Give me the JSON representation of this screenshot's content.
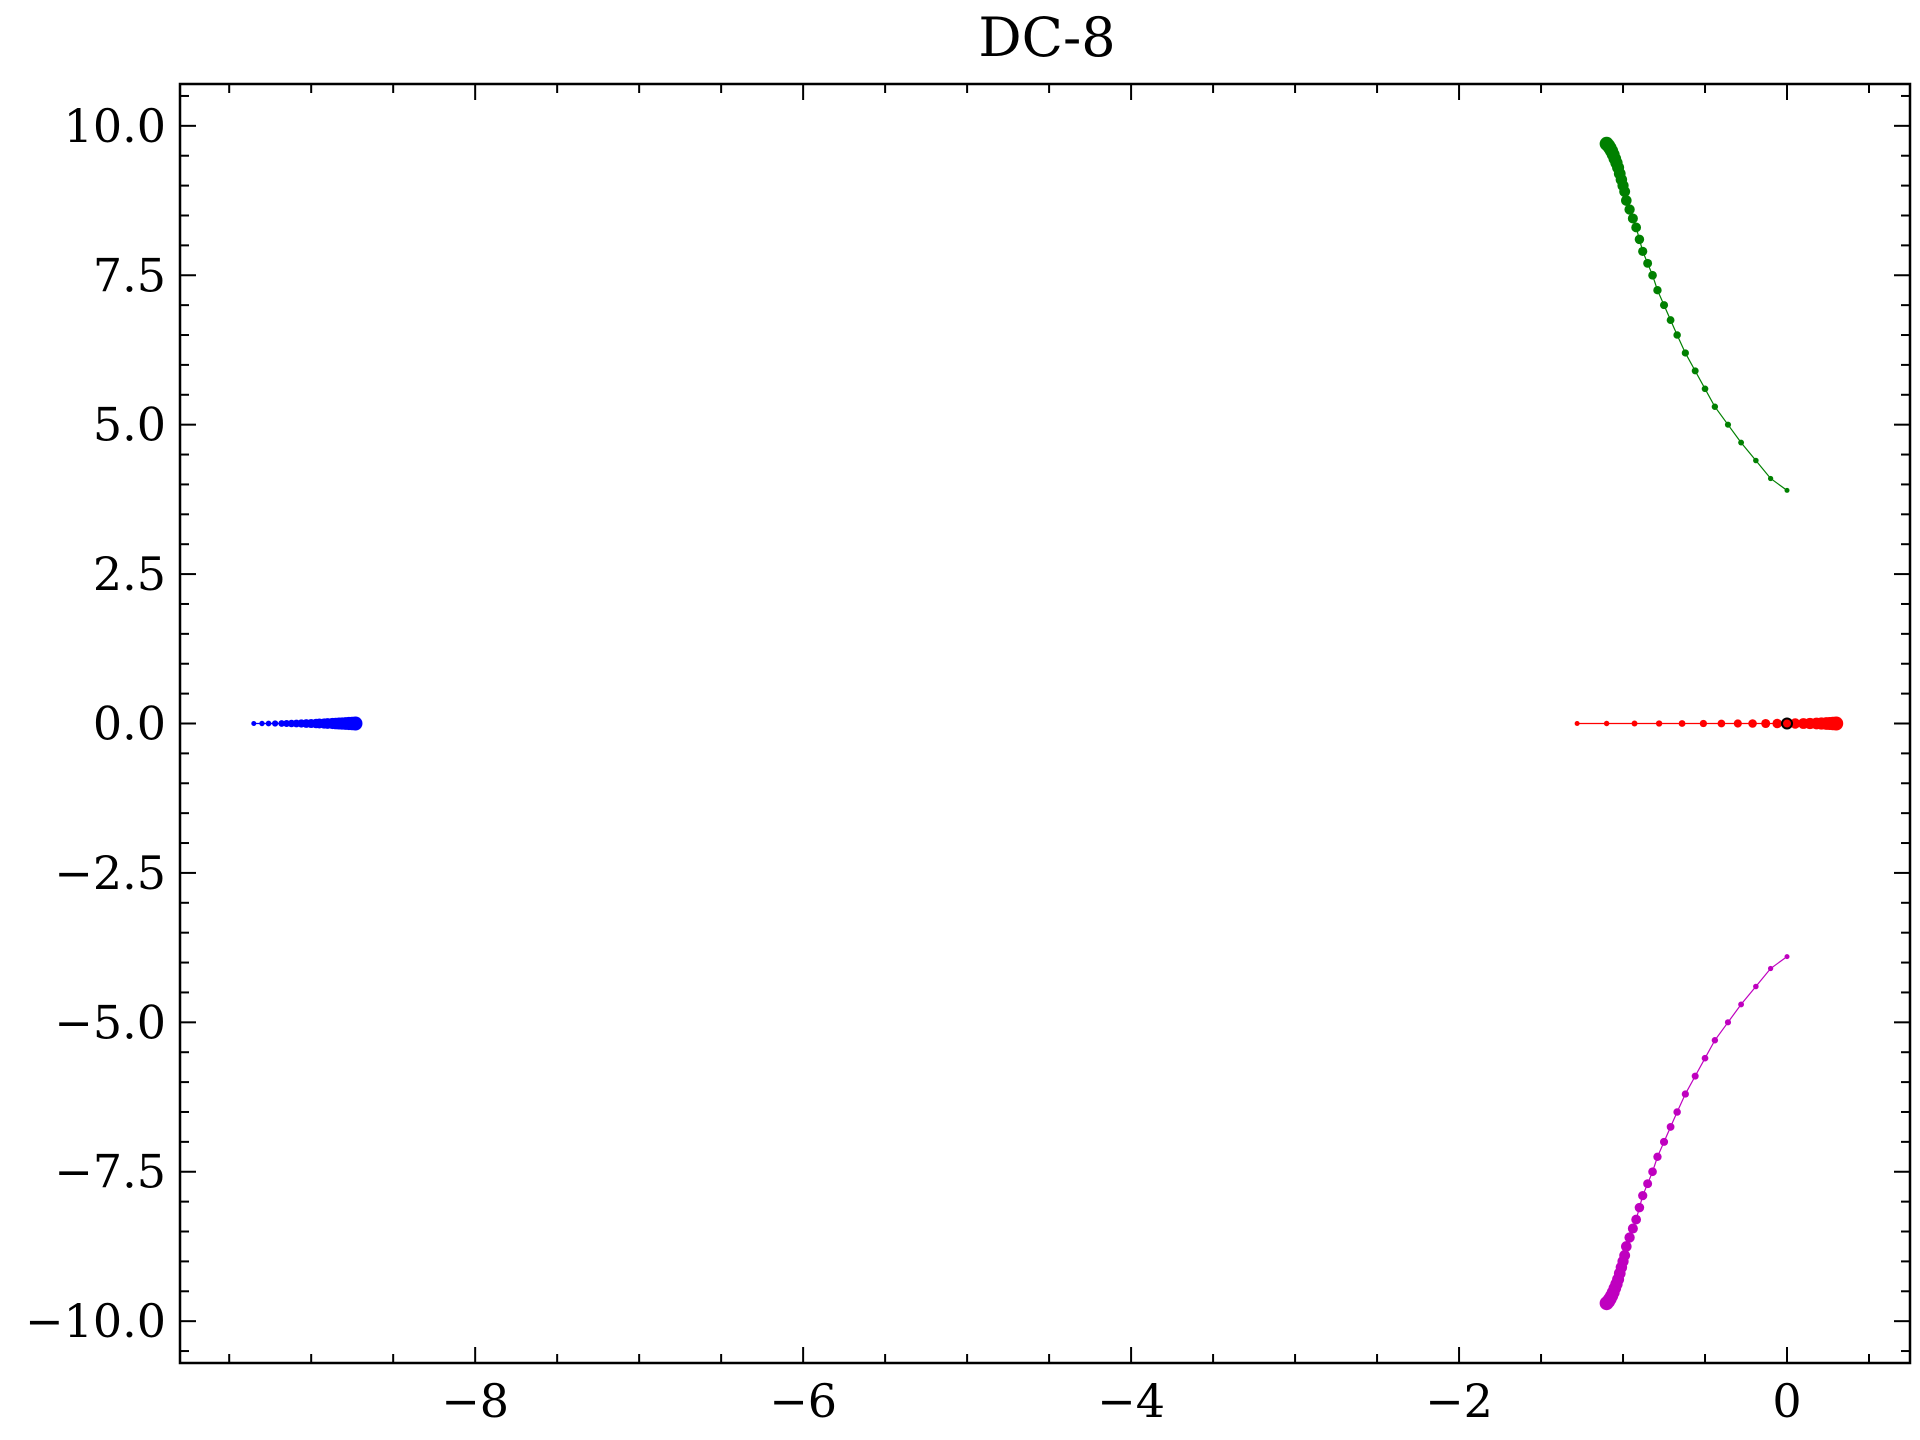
{
  "chart_data": {
    "type": "scatter",
    "title": "DC-8",
    "xlabel": "",
    "ylabel": "",
    "xlim": [
      -9.8,
      0.75
    ],
    "ylim": [
      -10.7,
      10.7
    ],
    "x_ticks": [
      -8,
      -6,
      -4,
      -2,
      0
    ],
    "x_tick_labels": [
      "−8",
      "−6",
      "−4",
      "−2",
      "0"
    ],
    "y_ticks": [
      10,
      7.5,
      5,
      2.5,
      0,
      -2.5,
      -5,
      -7.5,
      -10
    ],
    "y_tick_labels": [
      "10.0",
      "7.5",
      "5.0",
      "2.5",
      "0.0",
      "−2.5",
      "−5.0",
      "−7.5",
      "−10.0"
    ],
    "grid": false,
    "legend": "none",
    "series": [
      {
        "color": "#0000ff",
        "x": [
          -9.35,
          -9.3,
          -9.26,
          -9.22,
          -9.18,
          -9.15,
          -9.12,
          -9.09,
          -9.06,
          -9.03,
          -9.0,
          -8.97,
          -8.95,
          -8.92,
          -8.9,
          -8.87,
          -8.85,
          -8.83,
          -8.81,
          -8.79,
          -8.77,
          -8.75,
          -8.73
        ],
        "y": [
          0,
          0,
          0,
          0,
          0,
          0,
          0,
          0,
          0,
          0,
          0,
          0,
          0,
          0,
          0,
          0,
          0,
          0,
          0,
          0,
          0,
          0,
          0
        ]
      },
      {
        "color": "#008000",
        "x": [
          0.0,
          -0.1,
          -0.19,
          -0.28,
          -0.36,
          -0.44,
          -0.5,
          -0.56,
          -0.62,
          -0.67,
          -0.71,
          -0.75,
          -0.79,
          -0.82,
          -0.85,
          -0.88,
          -0.9,
          -0.92,
          -0.94,
          -0.96,
          -0.98,
          -0.99,
          -1.0,
          -1.01,
          -1.02,
          -1.03,
          -1.04,
          -1.05,
          -1.06,
          -1.07,
          -1.08,
          -1.09,
          -1.1
        ],
        "y": [
          3.9,
          4.1,
          4.4,
          4.7,
          5.0,
          5.3,
          5.6,
          5.9,
          6.2,
          6.5,
          6.75,
          7.0,
          7.25,
          7.5,
          7.7,
          7.9,
          8.1,
          8.3,
          8.45,
          8.6,
          8.75,
          8.9,
          9.0,
          9.1,
          9.2,
          9.3,
          9.38,
          9.45,
          9.52,
          9.58,
          9.63,
          9.67,
          9.7
        ]
      },
      {
        "color": "#ff0000",
        "x": [
          -1.28,
          -1.1,
          -0.93,
          -0.78,
          -0.64,
          -0.51,
          -0.4,
          -0.3,
          -0.21,
          -0.13,
          -0.06,
          0.0,
          0.05,
          0.1,
          0.14,
          0.18,
          0.21,
          0.24,
          0.26,
          0.28,
          0.3
        ],
        "y": [
          0,
          0,
          0,
          0,
          0,
          0,
          0,
          0,
          0,
          0,
          0,
          0,
          0,
          0,
          0,
          0,
          0,
          0,
          0,
          0,
          0
        ]
      },
      {
        "color": "#bf00bf",
        "x": [
          0.0,
          -0.1,
          -0.19,
          -0.28,
          -0.36,
          -0.44,
          -0.5,
          -0.56,
          -0.62,
          -0.67,
          -0.71,
          -0.75,
          -0.79,
          -0.82,
          -0.85,
          -0.88,
          -0.9,
          -0.92,
          -0.94,
          -0.96,
          -0.98,
          -0.99,
          -1.0,
          -1.01,
          -1.02,
          -1.03,
          -1.04,
          -1.05,
          -1.06,
          -1.07,
          -1.08,
          -1.09,
          -1.1
        ],
        "y": [
          -3.9,
          -4.1,
          -4.4,
          -4.7,
          -5.0,
          -5.3,
          -5.6,
          -5.9,
          -6.2,
          -6.5,
          -6.75,
          -7.0,
          -7.25,
          -7.5,
          -7.7,
          -7.9,
          -8.1,
          -8.3,
          -8.45,
          -8.6,
          -8.75,
          -8.9,
          -9.0,
          -9.1,
          -9.2,
          -9.3,
          -9.38,
          -9.45,
          -9.52,
          -9.58,
          -9.63,
          -9.67,
          -9.7
        ]
      },
      {
        "color": "#000000",
        "marker": "open-circle",
        "x": [
          0.0
        ],
        "y": [
          0.0
        ]
      }
    ]
  }
}
